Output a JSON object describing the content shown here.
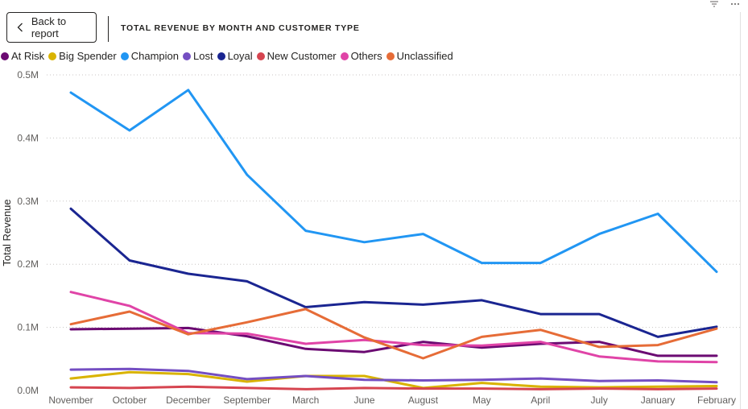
{
  "header": {
    "back_label": "Back to report",
    "title": "TOTAL REVENUE BY MONTH AND CUSTOMER TYPE"
  },
  "icons": {
    "back": "chevron-left-icon",
    "filter": "filter-icon",
    "more": "more-options-icon"
  },
  "chart_data": {
    "type": "line",
    "title": "TOTAL REVENUE BY MONTH AND CUSTOMER TYPE",
    "xlabel": "",
    "ylabel": "Total Revenue",
    "ylim": [
      0,
      500000
    ],
    "yticks": [
      "0.0M",
      "0.1M",
      "0.2M",
      "0.3M",
      "0.4M",
      "0.5M"
    ],
    "grid": true,
    "legend_position": "top-left",
    "categories": [
      "November",
      "October",
      "December",
      "September",
      "March",
      "June",
      "August",
      "May",
      "April",
      "July",
      "January",
      "February"
    ],
    "series": [
      {
        "name": "At Risk",
        "color": "#6b0a72",
        "values": [
          97000,
          98000,
          99000,
          86000,
          66000,
          61000,
          77000,
          68000,
          74000,
          77000,
          55000,
          55000
        ]
      },
      {
        "name": "Big Spender",
        "color": "#d9b300",
        "values": [
          19000,
          29000,
          26000,
          14000,
          23000,
          23000,
          4000,
          12000,
          6000,
          5000,
          6000,
          7000
        ]
      },
      {
        "name": "Champion",
        "color": "#2196f3",
        "values": [
          472000,
          412000,
          476000,
          342000,
          253000,
          235000,
          248000,
          202000,
          202000,
          248000,
          280000,
          188000
        ]
      },
      {
        "name": "Lost",
        "color": "#744ec2",
        "values": [
          33000,
          34000,
          31000,
          18000,
          23000,
          17000,
          16000,
          17000,
          19000,
          15000,
          16000,
          13000
        ]
      },
      {
        "name": "Loyal",
        "color": "#1a2591",
        "values": [
          288000,
          206000,
          185000,
          173000,
          132000,
          140000,
          136000,
          143000,
          121000,
          121000,
          85000,
          101000
        ]
      },
      {
        "name": "New Customer",
        "color": "#d64550",
        "values": [
          5000,
          4000,
          6000,
          4000,
          2000,
          4000,
          3000,
          3000,
          2000,
          3000,
          2000,
          3000
        ]
      },
      {
        "name": "Others",
        "color": "#e044a7",
        "values": [
          156000,
          134000,
          91000,
          90000,
          74000,
          80000,
          72000,
          71000,
          77000,
          54000,
          46000,
          45000
        ]
      },
      {
        "name": "Unclassified",
        "color": "#e66c37",
        "values": [
          105000,
          125000,
          89000,
          108000,
          129000,
          84000,
          51000,
          85000,
          96000,
          69000,
          72000,
          98000
        ]
      }
    ]
  }
}
